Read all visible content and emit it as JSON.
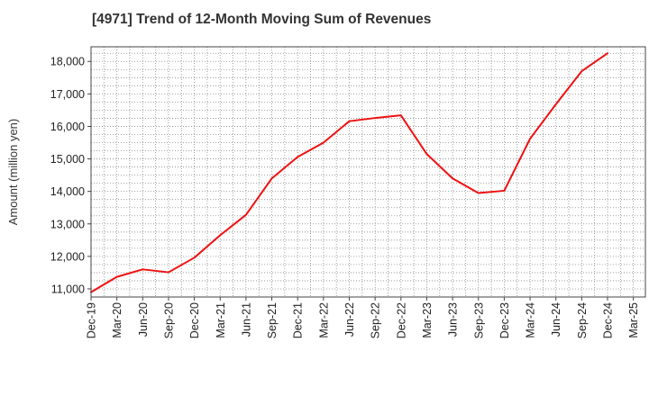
{
  "chart_data": {
    "type": "line",
    "title": "[4971]  Trend of 12-Month Moving Sum of Revenues",
    "xlabel": "",
    "ylabel": "Amount (million yen)",
    "x_ticks": [
      "Dec-19",
      "Mar-20",
      "Jun-20",
      "Sep-20",
      "Dec-20",
      "Mar-21",
      "Jun-21",
      "Sep-21",
      "Dec-21",
      "Mar-22",
      "Jun-22",
      "Sep-22",
      "Dec-22",
      "Mar-23",
      "Jun-23",
      "Sep-23",
      "Dec-23",
      "Mar-24",
      "Jun-24",
      "Sep-24",
      "Dec-24",
      "Mar-25"
    ],
    "y_ticks": [
      11000,
      12000,
      13000,
      14000,
      15000,
      16000,
      17000,
      18000
    ],
    "ylim": [
      10750,
      18450
    ],
    "grid": true,
    "line_color": "#ee1111",
    "series": [
      {
        "x": [
          "Dec-19",
          "Mar-20",
          "Jun-20",
          "Sep-20",
          "Dec-20",
          "Mar-21",
          "Jun-21",
          "Sep-21",
          "Dec-21",
          "Mar-22",
          "Jun-22",
          "Sep-22",
          "Dec-22",
          "Mar-23",
          "Jun-23",
          "Sep-23",
          "Dec-23",
          "Mar-24",
          "Jun-24",
          "Sep-24",
          "Dec-24"
        ],
        "values": [
          10900,
          11370,
          11600,
          11510,
          11960,
          12650,
          13280,
          14400,
          15060,
          15500,
          16160,
          16260,
          16340,
          15150,
          14400,
          13950,
          14020,
          15620,
          16680,
          17700,
          18250
        ]
      }
    ]
  }
}
